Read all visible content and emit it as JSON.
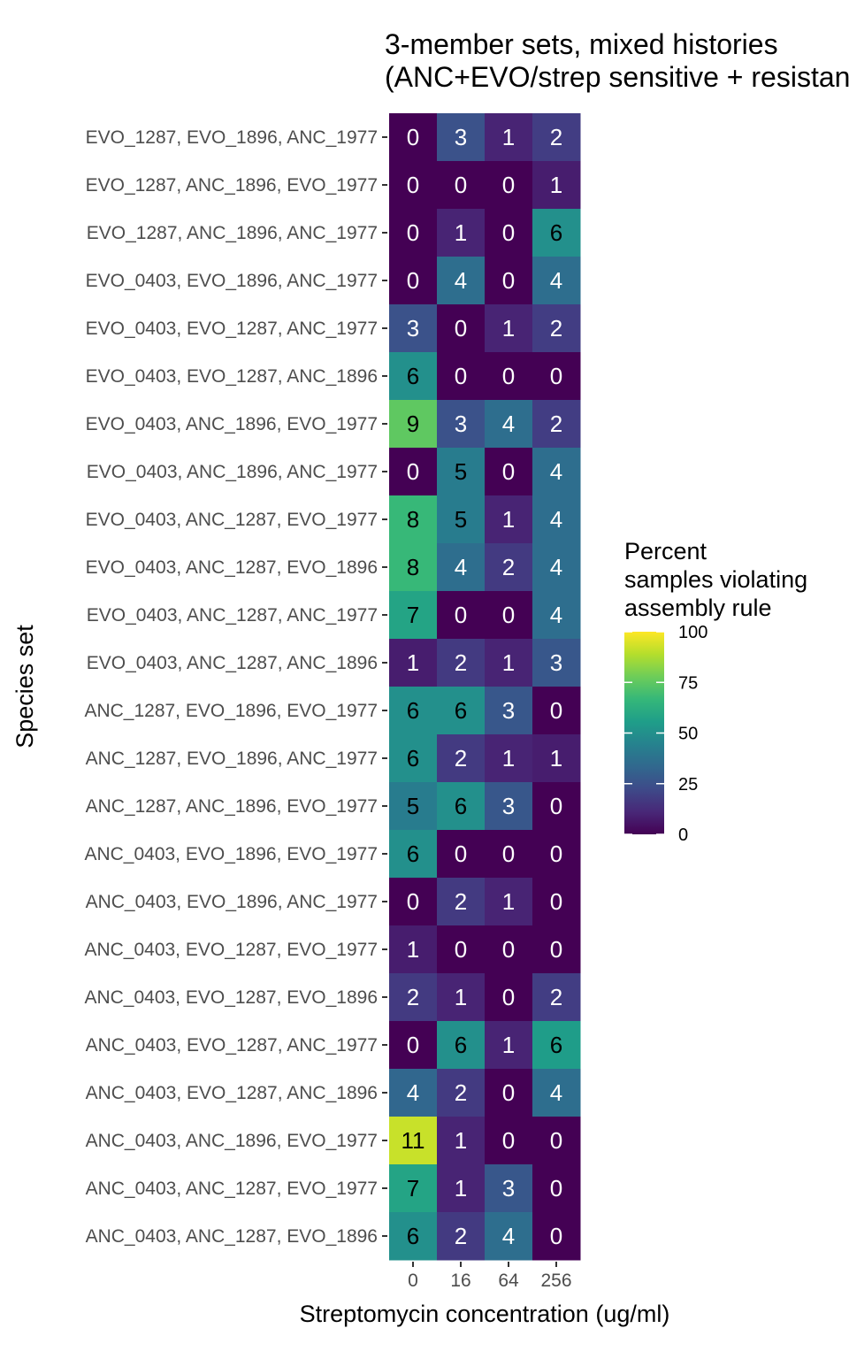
{
  "chart_data": {
    "type": "heatmap",
    "title": [
      "3-member sets, mixed histories",
      "(ANC+EVO/strep sensitive + resistant)"
    ],
    "xlabel": "Streptomycin concentration (ug/ml)",
    "ylabel": "Species set",
    "x_categories": [
      "0",
      "16",
      "64",
      "256"
    ],
    "y_categories": [
      "EVO_1287, EVO_1896, ANC_1977",
      "EVO_1287, ANC_1896, EVO_1977",
      "EVO_1287, ANC_1896, ANC_1977",
      "EVO_0403, EVO_1896, ANC_1977",
      "EVO_0403, EVO_1287, ANC_1977",
      "EVO_0403, EVO_1287, ANC_1896",
      "EVO_0403, ANC_1896, EVO_1977",
      "EVO_0403, ANC_1896, ANC_1977",
      "EVO_0403, ANC_1287, EVO_1977",
      "EVO_0403, ANC_1287, EVO_1896",
      "EVO_0403, ANC_1287, ANC_1977",
      "EVO_0403, ANC_1287, ANC_1896",
      "ANC_1287, EVO_1896, EVO_1977",
      "ANC_1287, EVO_1896, ANC_1977",
      "ANC_1287, ANC_1896, EVO_1977",
      "ANC_0403, EVO_1896, EVO_1977",
      "ANC_0403, EVO_1896, ANC_1977",
      "ANC_0403, EVO_1287, EVO_1977",
      "ANC_0403, EVO_1287, EVO_1896",
      "ANC_0403, EVO_1287, ANC_1977",
      "ANC_0403, EVO_1287, ANC_1896",
      "ANC_0403, ANC_1896, EVO_1977",
      "ANC_0403, ANC_1287, EVO_1977",
      "ANC_0403, ANC_1287, EVO_1896"
    ],
    "labels": [
      [
        0,
        3,
        1,
        2
      ],
      [
        0,
        0,
        0,
        1
      ],
      [
        0,
        1,
        0,
        6
      ],
      [
        0,
        4,
        0,
        4
      ],
      [
        3,
        0,
        1,
        2
      ],
      [
        6,
        0,
        0,
        0
      ],
      [
        9,
        3,
        4,
        2
      ],
      [
        0,
        5,
        0,
        4
      ],
      [
        8,
        5,
        1,
        4
      ],
      [
        8,
        4,
        2,
        4
      ],
      [
        7,
        0,
        0,
        4
      ],
      [
        1,
        2,
        1,
        3
      ],
      [
        6,
        6,
        3,
        0
      ],
      [
        6,
        2,
        1,
        1
      ],
      [
        5,
        6,
        3,
        0
      ],
      [
        6,
        0,
        0,
        0
      ],
      [
        0,
        2,
        1,
        0
      ],
      [
        1,
        0,
        0,
        0
      ],
      [
        2,
        1,
        0,
        2
      ],
      [
        0,
        6,
        1,
        6
      ],
      [
        4,
        2,
        0,
        4
      ],
      [
        11,
        1,
        0,
        0
      ],
      [
        7,
        1,
        3,
        0
      ],
      [
        6,
        2,
        4,
        0
      ]
    ],
    "percent": [
      [
        0,
        25,
        10,
        18
      ],
      [
        0,
        0,
        0,
        8
      ],
      [
        0,
        10,
        0,
        50
      ],
      [
        0,
        36,
        0,
        36
      ],
      [
        25,
        0,
        10,
        18
      ],
      [
        50,
        0,
        0,
        0
      ],
      [
        75,
        25,
        36,
        18
      ],
      [
        0,
        42,
        0,
        36
      ],
      [
        67,
        42,
        10,
        36
      ],
      [
        67,
        36,
        17,
        36
      ],
      [
        58,
        0,
        0,
        36
      ],
      [
        8,
        17,
        10,
        27
      ],
      [
        50,
        50,
        27,
        0
      ],
      [
        50,
        17,
        10,
        8
      ],
      [
        42,
        50,
        27,
        0
      ],
      [
        50,
        0,
        0,
        0
      ],
      [
        0,
        17,
        10,
        0
      ],
      [
        8,
        0,
        0,
        0
      ],
      [
        17,
        10,
        0,
        18
      ],
      [
        0,
        50,
        10,
        55
      ],
      [
        33,
        17,
        0,
        36
      ],
      [
        92,
        10,
        0,
        0
      ],
      [
        58,
        10,
        27,
        0
      ],
      [
        50,
        17,
        36,
        0
      ]
    ],
    "color_scale": {
      "name": "viridis",
      "limits": [
        0,
        100
      ],
      "stops": [
        "#440154",
        "#482878",
        "#3e4a89",
        "#31688e",
        "#26828e",
        "#1f9e89",
        "#35b779",
        "#6dcd59",
        "#b4de2c",
        "#fde725"
      ]
    },
    "legend": {
      "title": [
        "Percent",
        "samples violating",
        "assembly rule"
      ],
      "ticks": [
        0,
        25,
        50,
        75,
        100
      ],
      "position": "right"
    }
  }
}
